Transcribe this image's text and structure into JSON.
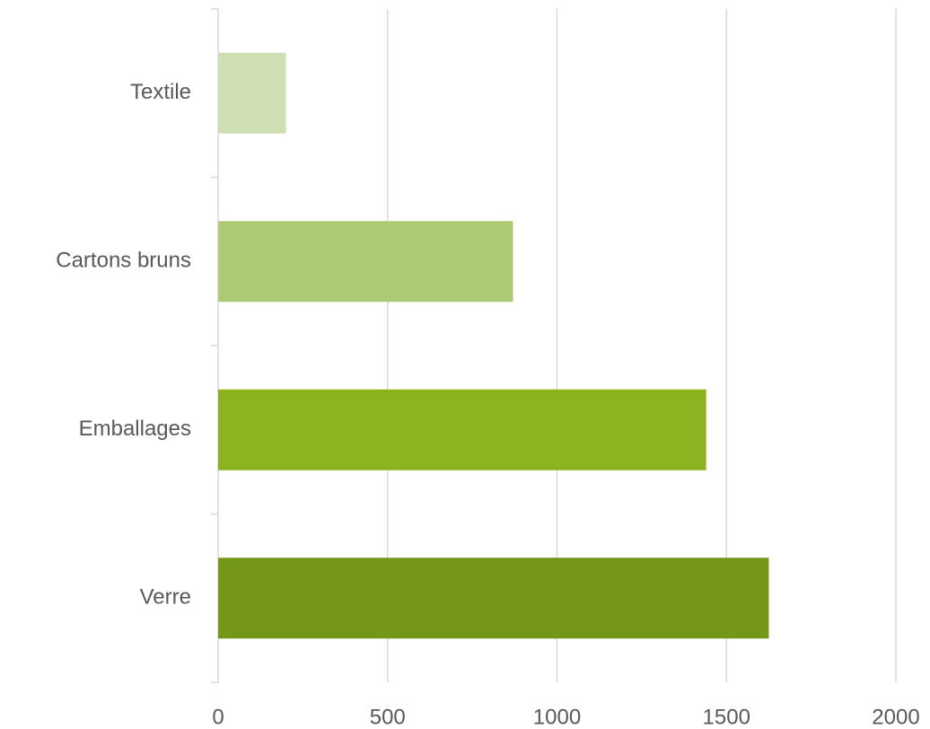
{
  "chart_data": {
    "type": "bar",
    "orientation": "horizontal",
    "categories": [
      "Textile",
      "Cartons bruns",
      "Emballages",
      "Verre"
    ],
    "values": [
      200,
      870,
      1440,
      1625
    ],
    "colors": [
      "#cde0b4",
      "#acca74",
      "#8bb31d",
      "#759718"
    ],
    "xlim": [
      0,
      2000
    ],
    "xticks": [
      0,
      500,
      1000,
      1500,
      2000
    ],
    "grid": true
  }
}
